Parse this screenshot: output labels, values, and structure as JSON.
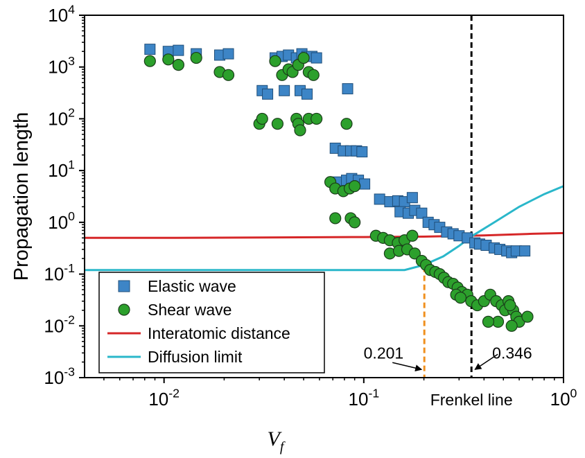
{
  "chart_data": {
    "type": "scatter",
    "xscale": "log",
    "yscale": "log",
    "xlim": [
      0.004,
      1
    ],
    "ylim": [
      0.001,
      10000
    ],
    "xlabel": "V",
    "xlabel_sub": "f",
    "ylabel": "Propagation length",
    "x_ticks": [
      {
        "value": 0.01,
        "base": "10",
        "exp": "-2"
      },
      {
        "value": 0.1,
        "base": "10",
        "exp": "-1"
      },
      {
        "value": 1,
        "base": "10",
        "exp": "0"
      }
    ],
    "y_ticks": [
      {
        "value": 0.001,
        "base": "10",
        "exp": "-3"
      },
      {
        "value": 0.01,
        "base": "10",
        "exp": "-2"
      },
      {
        "value": 0.1,
        "base": "10",
        "exp": "-1"
      },
      {
        "value": 1,
        "base": "10",
        "exp": "0"
      },
      {
        "value": 10,
        "base": "10",
        "exp": "1"
      },
      {
        "value": 100,
        "base": "10",
        "exp": "2"
      },
      {
        "value": 1000,
        "base": "10",
        "exp": "3"
      },
      {
        "value": 10000,
        "base": "10",
        "exp": "4"
      }
    ],
    "legend_position": "bottom-left",
    "series": [
      {
        "name": "Elastic wave",
        "marker": "square",
        "color": "#3d85c6",
        "points": [
          [
            0.0085,
            2200
          ],
          [
            0.0105,
            2000
          ],
          [
            0.0118,
            2100
          ],
          [
            0.0145,
            1800
          ],
          [
            0.019,
            1700
          ],
          [
            0.021,
            1800
          ],
          [
            0.036,
            1500
          ],
          [
            0.039,
            1600
          ],
          [
            0.042,
            1700
          ],
          [
            0.046,
            1500
          ],
          [
            0.049,
            1800
          ],
          [
            0.052,
            1600
          ],
          [
            0.055,
            1600
          ],
          [
            0.058,
            1500
          ],
          [
            0.031,
            350
          ],
          [
            0.033,
            300
          ],
          [
            0.04,
            350
          ],
          [
            0.048,
            350
          ],
          [
            0.052,
            300
          ],
          [
            0.083,
            380
          ],
          [
            0.072,
            27
          ],
          [
            0.079,
            24
          ],
          [
            0.086,
            24
          ],
          [
            0.092,
            24
          ],
          [
            0.098,
            23
          ],
          [
            0.074,
            6
          ],
          [
            0.082,
            6.5
          ],
          [
            0.087,
            7
          ],
          [
            0.094,
            6.5
          ],
          [
            0.101,
            5.5
          ],
          [
            0.12,
            2.8
          ],
          [
            0.135,
            2.5
          ],
          [
            0.148,
            2.6
          ],
          [
            0.16,
            2.5
          ],
          [
            0.175,
            3
          ],
          [
            0.152,
            1.6
          ],
          [
            0.167,
            1.5
          ],
          [
            0.18,
            1.7
          ],
          [
            0.195,
            1.5
          ],
          [
            0.21,
            1.0
          ],
          [
            0.225,
            0.9
          ],
          [
            0.24,
            0.8
          ],
          [
            0.26,
            0.65
          ],
          [
            0.28,
            0.6
          ],
          [
            0.3,
            0.55
          ],
          [
            0.33,
            0.5
          ],
          [
            0.36,
            0.4
          ],
          [
            0.38,
            0.38
          ],
          [
            0.41,
            0.36
          ],
          [
            0.45,
            0.32
          ],
          [
            0.48,
            0.3
          ],
          [
            0.52,
            0.28
          ],
          [
            0.55,
            0.26
          ],
          [
            0.58,
            0.28
          ],
          [
            0.64,
            0.28
          ]
        ]
      },
      {
        "name": "Shear wave",
        "marker": "circle",
        "color": "#2ca02c",
        "points": [
          [
            0.0085,
            1300
          ],
          [
            0.0105,
            1400
          ],
          [
            0.0118,
            1100
          ],
          [
            0.0145,
            1500
          ],
          [
            0.019,
            800
          ],
          [
            0.021,
            700
          ],
          [
            0.036,
            1300
          ],
          [
            0.039,
            700
          ],
          [
            0.042,
            900
          ],
          [
            0.044,
            800
          ],
          [
            0.047,
            1100
          ],
          [
            0.05,
            1500
          ],
          [
            0.053,
            800
          ],
          [
            0.056,
            700
          ],
          [
            0.03,
            80
          ],
          [
            0.031,
            100
          ],
          [
            0.037,
            80
          ],
          [
            0.046,
            100
          ],
          [
            0.047,
            80
          ],
          [
            0.048,
            60
          ],
          [
            0.053,
            100
          ],
          [
            0.058,
            100
          ],
          [
            0.082,
            80
          ],
          [
            0.068,
            6
          ],
          [
            0.072,
            4.5
          ],
          [
            0.079,
            4
          ],
          [
            0.085,
            4.5
          ],
          [
            0.09,
            5
          ],
          [
            0.072,
            1.2
          ],
          [
            0.086,
            1.2
          ],
          [
            0.09,
            1.0
          ],
          [
            0.115,
            0.55
          ],
          [
            0.125,
            0.5
          ],
          [
            0.135,
            0.45
          ],
          [
            0.148,
            0.4
          ],
          [
            0.16,
            0.45
          ],
          [
            0.175,
            0.55
          ],
          [
            0.135,
            0.25
          ],
          [
            0.15,
            0.28
          ],
          [
            0.165,
            0.3
          ],
          [
            0.18,
            0.25
          ],
          [
            0.195,
            0.18
          ],
          [
            0.205,
            0.15
          ],
          [
            0.215,
            0.12
          ],
          [
            0.228,
            0.11
          ],
          [
            0.24,
            0.1
          ],
          [
            0.252,
            0.085
          ],
          [
            0.265,
            0.07
          ],
          [
            0.28,
            0.065
          ],
          [
            0.295,
            0.055
          ],
          [
            0.31,
            0.045
          ],
          [
            0.33,
            0.04
          ],
          [
            0.29,
            0.04
          ],
          [
            0.305,
            0.035
          ],
          [
            0.345,
            0.03
          ],
          [
            0.37,
            0.025
          ],
          [
            0.4,
            0.03
          ],
          [
            0.43,
            0.04
          ],
          [
            0.46,
            0.03
          ],
          [
            0.49,
            0.025
          ],
          [
            0.51,
            0.02
          ],
          [
            0.53,
            0.03
          ],
          [
            0.56,
            0.02
          ],
          [
            0.58,
            0.015
          ],
          [
            0.6,
            0.012
          ],
          [
            0.55,
            0.01
          ],
          [
            0.66,
            0.015
          ],
          [
            0.47,
            0.012
          ],
          [
            0.54,
            0.025
          ],
          [
            0.42,
            0.012
          ]
        ]
      },
      {
        "name": "Interatomic distance",
        "marker": "line",
        "color": "#d62728",
        "points": [
          [
            0.004,
            0.5
          ],
          [
            0.01,
            0.5
          ],
          [
            0.1,
            0.52
          ],
          [
            0.2,
            0.53
          ],
          [
            0.4,
            0.56
          ],
          [
            0.7,
            0.6
          ],
          [
            1.0,
            0.62
          ]
        ]
      },
      {
        "name": "Diffusion limit",
        "marker": "line",
        "color": "#2ab7ca",
        "points": [
          [
            0.004,
            0.12
          ],
          [
            0.05,
            0.12
          ],
          [
            0.1,
            0.12
          ],
          [
            0.16,
            0.12
          ],
          [
            0.2,
            0.15
          ],
          [
            0.25,
            0.22
          ],
          [
            0.3,
            0.35
          ],
          [
            0.35,
            0.55
          ],
          [
            0.45,
            1.0
          ],
          [
            0.6,
            2.0
          ],
          [
            0.8,
            3.5
          ],
          [
            1.0,
            5.0
          ]
        ]
      }
    ],
    "annotations": [
      {
        "kind": "vline",
        "x": 0.346,
        "color": "#000000",
        "dash": true,
        "label": "Frenkel line"
      },
      {
        "kind": "vline_to_curve",
        "x": 0.201,
        "y_top": 0.14,
        "color": "#f0901e",
        "dash": true
      },
      {
        "kind": "arrow_label",
        "text": "0.201",
        "x": 0.201,
        "y": 0.0025,
        "label_side": "left"
      },
      {
        "kind": "arrow_label",
        "text": "0.346",
        "x": 0.346,
        "y": 0.0025,
        "label_side": "right"
      }
    ]
  }
}
